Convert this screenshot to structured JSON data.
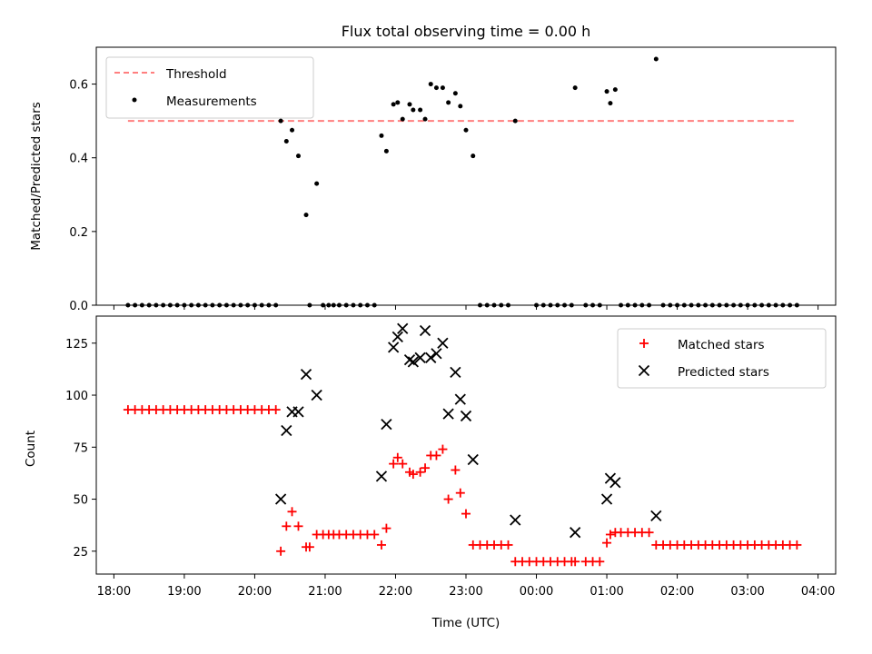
{
  "chart_data": [
    {
      "type": "scatter",
      "title": "Flux total observing time = 0.00 h",
      "xlabel": "",
      "ylabel": "Matched/Predicted stars",
      "xlim": [
        17.75,
        28.25
      ],
      "ylim": [
        0,
        0.7
      ],
      "yticks": [
        0.0,
        0.2,
        0.4,
        0.6
      ],
      "yticklabels": [
        "0.0",
        "0.2",
        "0.4",
        "0.6"
      ],
      "legend_position": "upper-left",
      "grid": false,
      "threshold": {
        "name": "Threshold",
        "value": 0.5,
        "x_range": [
          18.2,
          27.7
        ],
        "color": "#ff7f7f",
        "style": "dashed"
      },
      "series": [
        {
          "name": "Measurements",
          "color": "#000000",
          "marker": "dot",
          "points": [
            [
              18.2,
              0
            ],
            [
              18.3,
              0
            ],
            [
              18.4,
              0
            ],
            [
              18.5,
              0
            ],
            [
              18.6,
              0
            ],
            [
              18.7,
              0
            ],
            [
              18.8,
              0
            ],
            [
              18.9,
              0
            ],
            [
              19.0,
              0
            ],
            [
              19.1,
              0
            ],
            [
              19.2,
              0
            ],
            [
              19.3,
              0
            ],
            [
              19.4,
              0
            ],
            [
              19.5,
              0
            ],
            [
              19.6,
              0
            ],
            [
              19.7,
              0
            ],
            [
              19.8,
              0
            ],
            [
              19.9,
              0
            ],
            [
              20.0,
              0
            ],
            [
              20.1,
              0
            ],
            [
              20.2,
              0
            ],
            [
              20.3,
              0
            ],
            [
              20.37,
              0.5
            ],
            [
              20.45,
              0.445
            ],
            [
              20.53,
              0.475
            ],
            [
              20.62,
              0.405
            ],
            [
              20.73,
              0.245
            ],
            [
              20.78,
              0
            ],
            [
              20.88,
              0.33
            ],
            [
              20.97,
              0
            ],
            [
              21.05,
              0
            ],
            [
              21.12,
              0
            ],
            [
              21.2,
              0
            ],
            [
              21.3,
              0
            ],
            [
              21.4,
              0
            ],
            [
              21.5,
              0
            ],
            [
              21.6,
              0
            ],
            [
              21.7,
              0
            ],
            [
              21.8,
              0.46
            ],
            [
              21.87,
              0.418
            ],
            [
              21.97,
              0.545
            ],
            [
              22.03,
              0.55
            ],
            [
              22.1,
              0.505
            ],
            [
              22.2,
              0.545
            ],
            [
              22.25,
              0.53
            ],
            [
              22.35,
              0.53
            ],
            [
              22.42,
              0.505
            ],
            [
              22.5,
              0.6
            ],
            [
              22.58,
              0.59
            ],
            [
              22.67,
              0.59
            ],
            [
              22.75,
              0.55
            ],
            [
              22.85,
              0.575
            ],
            [
              22.92,
              0.54
            ],
            [
              23.0,
              0.475
            ],
            [
              23.1,
              0.405
            ],
            [
              23.2,
              0
            ],
            [
              23.3,
              0
            ],
            [
              23.4,
              0
            ],
            [
              23.5,
              0
            ],
            [
              23.6,
              0
            ],
            [
              23.7,
              0.5
            ],
            [
              24.0,
              0
            ],
            [
              24.1,
              0
            ],
            [
              24.2,
              0
            ],
            [
              24.3,
              0
            ],
            [
              24.4,
              0
            ],
            [
              24.5,
              0
            ],
            [
              24.55,
              0.59
            ],
            [
              24.7,
              0
            ],
            [
              24.8,
              0
            ],
            [
              24.9,
              0
            ],
            [
              25.0,
              0.58
            ],
            [
              25.05,
              0.548
            ],
            [
              25.12,
              0.585
            ],
            [
              25.2,
              0
            ],
            [
              25.3,
              0
            ],
            [
              25.4,
              0
            ],
            [
              25.5,
              0
            ],
            [
              25.6,
              0
            ],
            [
              25.7,
              0.668
            ],
            [
              25.8,
              0
            ],
            [
              25.9,
              0
            ],
            [
              26.0,
              0
            ],
            [
              26.1,
              0
            ],
            [
              26.2,
              0
            ],
            [
              26.3,
              0
            ],
            [
              26.4,
              0
            ],
            [
              26.5,
              0
            ],
            [
              26.6,
              0
            ],
            [
              26.7,
              0
            ],
            [
              26.8,
              0
            ],
            [
              26.9,
              0
            ],
            [
              27.0,
              0
            ],
            [
              27.1,
              0
            ],
            [
              27.2,
              0
            ],
            [
              27.3,
              0
            ],
            [
              27.4,
              0
            ],
            [
              27.5,
              0
            ],
            [
              27.6,
              0
            ],
            [
              27.7,
              0
            ]
          ]
        }
      ]
    },
    {
      "type": "scatter",
      "title": "",
      "xlabel": "Time (UTC)",
      "ylabel": "Count",
      "xlim": [
        17.75,
        28.25
      ],
      "ylim": [
        14,
        138
      ],
      "yticks": [
        25,
        50,
        75,
        100,
        125
      ],
      "yticklabels": [
        "25",
        "50",
        "75",
        "100",
        "125"
      ],
      "xticks": [
        18,
        19,
        20,
        21,
        22,
        23,
        24,
        25,
        26,
        27,
        28
      ],
      "xticklabels": [
        "18:00",
        "19:00",
        "20:00",
        "21:00",
        "22:00",
        "23:00",
        "00:00",
        "01:00",
        "02:00",
        "03:00",
        "04:00"
      ],
      "legend_position": "upper-right",
      "grid": false,
      "series": [
        {
          "name": "Matched stars",
          "color": "#ff0000",
          "marker": "plus",
          "points": [
            [
              18.2,
              93
            ],
            [
              18.3,
              93
            ],
            [
              18.4,
              93
            ],
            [
              18.5,
              93
            ],
            [
              18.6,
              93
            ],
            [
              18.7,
              93
            ],
            [
              18.8,
              93
            ],
            [
              18.9,
              93
            ],
            [
              19.0,
              93
            ],
            [
              19.1,
              93
            ],
            [
              19.2,
              93
            ],
            [
              19.3,
              93
            ],
            [
              19.4,
              93
            ],
            [
              19.5,
              93
            ],
            [
              19.6,
              93
            ],
            [
              19.7,
              93
            ],
            [
              19.8,
              93
            ],
            [
              19.9,
              93
            ],
            [
              20.0,
              93
            ],
            [
              20.1,
              93
            ],
            [
              20.2,
              93
            ],
            [
              20.3,
              93
            ],
            [
              20.37,
              25
            ],
            [
              20.45,
              37
            ],
            [
              20.53,
              44
            ],
            [
              20.62,
              37
            ],
            [
              20.73,
              27
            ],
            [
              20.78,
              27
            ],
            [
              20.88,
              33
            ],
            [
              20.97,
              33
            ],
            [
              21.05,
              33
            ],
            [
              21.12,
              33
            ],
            [
              21.2,
              33
            ],
            [
              21.3,
              33
            ],
            [
              21.4,
              33
            ],
            [
              21.5,
              33
            ],
            [
              21.6,
              33
            ],
            [
              21.7,
              33
            ],
            [
              21.8,
              28
            ],
            [
              21.87,
              36
            ],
            [
              21.97,
              67
            ],
            [
              22.03,
              70
            ],
            [
              22.1,
              67
            ],
            [
              22.2,
              63
            ],
            [
              22.25,
              62
            ],
            [
              22.35,
              63
            ],
            [
              22.42,
              65
            ],
            [
              22.5,
              71
            ],
            [
              22.58,
              71
            ],
            [
              22.67,
              74
            ],
            [
              22.75,
              50
            ],
            [
              22.85,
              64
            ],
            [
              22.92,
              53
            ],
            [
              23.0,
              43
            ],
            [
              23.1,
              28
            ],
            [
              23.2,
              28
            ],
            [
              23.3,
              28
            ],
            [
              23.4,
              28
            ],
            [
              23.5,
              28
            ],
            [
              23.6,
              28
            ],
            [
              23.7,
              20
            ],
            [
              23.8,
              20
            ],
            [
              23.9,
              20
            ],
            [
              24.0,
              20
            ],
            [
              24.1,
              20
            ],
            [
              24.2,
              20
            ],
            [
              24.3,
              20
            ],
            [
              24.4,
              20
            ],
            [
              24.5,
              20
            ],
            [
              24.55,
              20
            ],
            [
              24.7,
              20
            ],
            [
              24.8,
              20
            ],
            [
              24.9,
              20
            ],
            [
              25.0,
              29
            ],
            [
              25.05,
              33
            ],
            [
              25.12,
              34
            ],
            [
              25.2,
              34
            ],
            [
              25.3,
              34
            ],
            [
              25.4,
              34
            ],
            [
              25.5,
              34
            ],
            [
              25.6,
              34
            ],
            [
              25.7,
              28
            ],
            [
              25.8,
              28
            ],
            [
              25.9,
              28
            ],
            [
              26.0,
              28
            ],
            [
              26.1,
              28
            ],
            [
              26.2,
              28
            ],
            [
              26.3,
              28
            ],
            [
              26.4,
              28
            ],
            [
              26.5,
              28
            ],
            [
              26.6,
              28
            ],
            [
              26.7,
              28
            ],
            [
              26.8,
              28
            ],
            [
              26.9,
              28
            ],
            [
              27.0,
              28
            ],
            [
              27.1,
              28
            ],
            [
              27.2,
              28
            ],
            [
              27.3,
              28
            ],
            [
              27.4,
              28
            ],
            [
              27.5,
              28
            ],
            [
              27.6,
              28
            ],
            [
              27.7,
              28
            ]
          ]
        },
        {
          "name": "Predicted stars",
          "color": "#000000",
          "marker": "x",
          "points": [
            [
              20.37,
              50
            ],
            [
              20.45,
              83
            ],
            [
              20.53,
              92
            ],
            [
              20.62,
              92
            ],
            [
              20.73,
              110
            ],
            [
              20.88,
              100
            ],
            [
              21.8,
              61
            ],
            [
              21.87,
              86
            ],
            [
              21.97,
              123
            ],
            [
              22.03,
              128
            ],
            [
              22.1,
              132
            ],
            [
              22.2,
              117
            ],
            [
              22.25,
              116
            ],
            [
              22.35,
              118
            ],
            [
              22.42,
              131
            ],
            [
              22.5,
              118
            ],
            [
              22.58,
              120
            ],
            [
              22.67,
              125
            ],
            [
              22.75,
              91
            ],
            [
              22.85,
              111
            ],
            [
              22.92,
              98
            ],
            [
              23.0,
              90
            ],
            [
              23.1,
              69
            ],
            [
              23.7,
              40
            ],
            [
              24.55,
              34
            ],
            [
              25.0,
              50
            ],
            [
              25.05,
              60
            ],
            [
              25.12,
              58
            ],
            [
              25.7,
              42
            ]
          ]
        }
      ]
    }
  ]
}
